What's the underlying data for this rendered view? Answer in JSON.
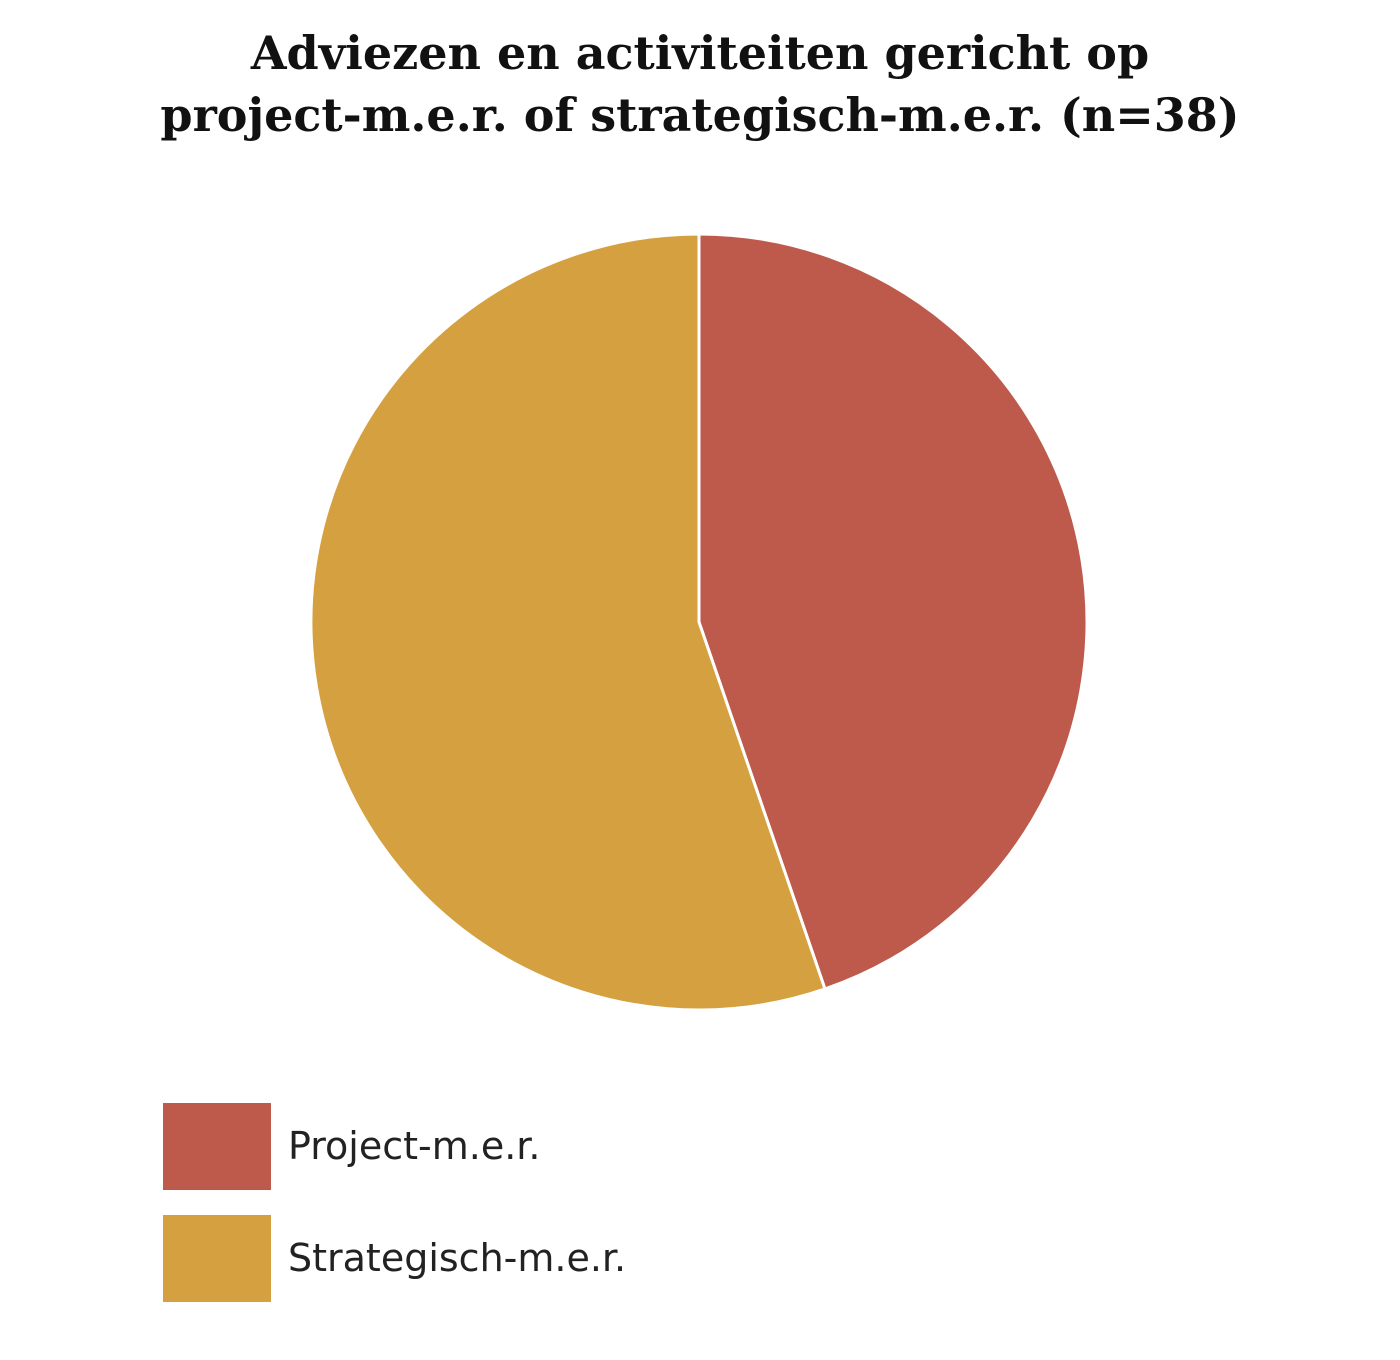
{
  "chart_data": {
    "type": "pie",
    "title_lines": [
      "Adviezen en activiteiten gericht op",
      "project-m.e.r. of strategisch-m.e.r. (n=38)"
    ],
    "series": [
      {
        "name": "Project-m.e.r.",
        "value": 17,
        "color": "#be5a4b"
      },
      {
        "name": "Strategisch-m.e.r.",
        "value": 21,
        "color": "#d5a03f"
      }
    ],
    "total": 38,
    "start_angle": "12 o'clock, clockwise",
    "legend_position": "bottom-left"
  }
}
